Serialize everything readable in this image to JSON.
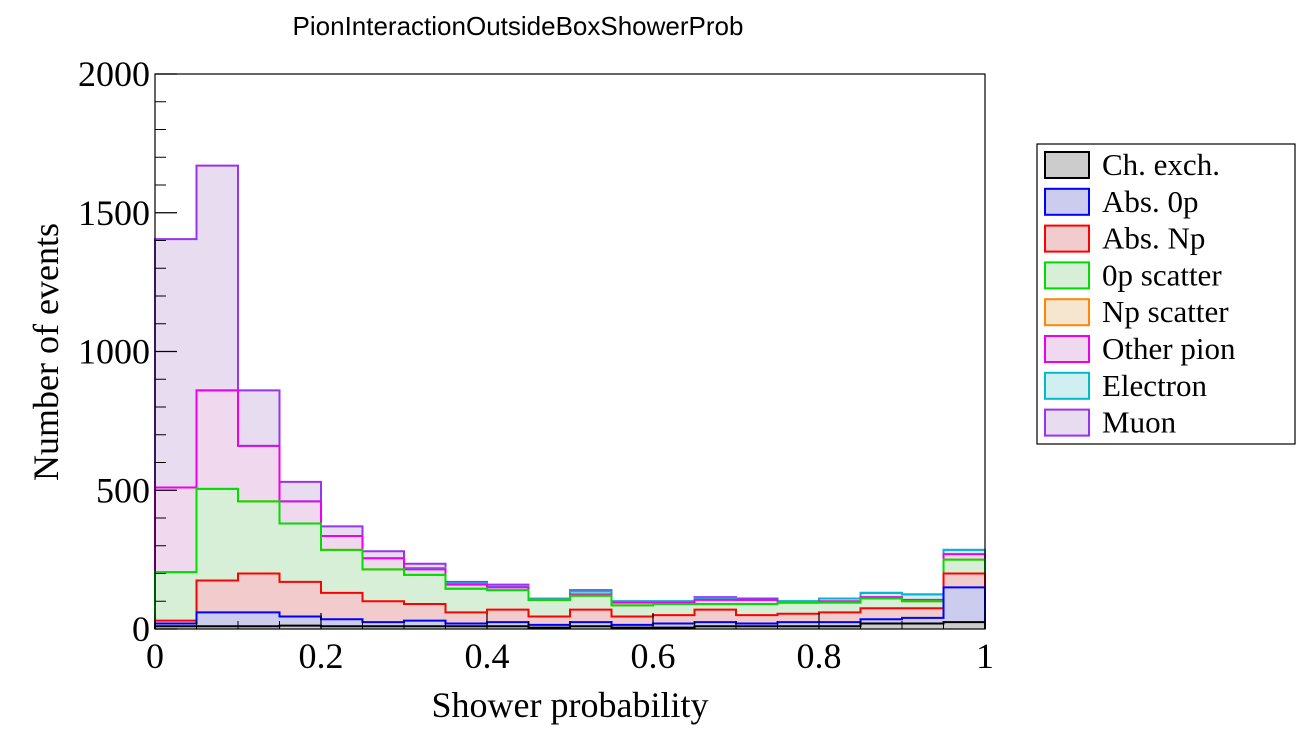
{
  "chart_data": {
    "type": "histogram-stacked",
    "title": "PionInteractionOutsideBoxShowerProb",
    "xlabel": "Shower probability",
    "ylabel": "Number of events",
    "xlim": [
      0,
      1
    ],
    "ylim": [
      0,
      2000
    ],
    "xticks": [
      0,
      0.2,
      0.4,
      0.6,
      0.8,
      1
    ],
    "xtick_labels": [
      "0",
      "0.2",
      "0.4",
      "0.6",
      "0.8",
      "1"
    ],
    "yticks": [
      0,
      500,
      1000,
      1500,
      2000
    ],
    "ytick_labels": [
      "0",
      "500",
      "1000",
      "1500",
      "2000"
    ],
    "bin_edges": [
      0,
      0.05,
      0.1,
      0.15,
      0.2,
      0.25,
      0.3,
      0.35,
      0.4,
      0.45,
      0.5,
      0.55,
      0.6,
      0.65,
      0.7,
      0.75,
      0.8,
      0.85,
      0.9,
      0.95,
      1.0
    ],
    "legend_position": "right",
    "stacked_cumulative_values": [
      {
        "name": "Ch. exch.",
        "color": "#000000",
        "fill": "#cccccc",
        "values": [
          10,
          10,
          10,
          12,
          10,
          10,
          10,
          10,
          10,
          5,
          10,
          5,
          5,
          10,
          10,
          10,
          10,
          20,
          20,
          25
        ]
      },
      {
        "name": "Abs. 0p",
        "color": "#0000ff",
        "fill": "#ccccee",
        "values": [
          20,
          60,
          60,
          45,
          35,
          25,
          30,
          20,
          25,
          15,
          25,
          15,
          20,
          25,
          20,
          25,
          25,
          35,
          40,
          150
        ]
      },
      {
        "name": "Abs. Np",
        "color": "#ff0000",
        "fill": "#f2cccc",
        "values": [
          30,
          175,
          200,
          170,
          130,
          100,
          90,
          60,
          70,
          45,
          70,
          45,
          50,
          70,
          50,
          55,
          60,
          75,
          75,
          200
        ]
      },
      {
        "name": "0p scatter",
        "color": "#00dd00",
        "fill": "#d6efd6",
        "values": [
          205,
          505,
          460,
          380,
          285,
          215,
          195,
          145,
          140,
          105,
          120,
          85,
          90,
          90,
          90,
          95,
          95,
          110,
          100,
          250
        ]
      },
      {
        "name": "Np scatter",
        "color": "#ff8800",
        "fill": "#f6e6d0",
        "values": [
          205,
          505,
          460,
          380,
          285,
          215,
          195,
          145,
          140,
          105,
          120,
          85,
          90,
          90,
          90,
          95,
          95,
          110,
          100,
          250
        ]
      },
      {
        "name": "Other pion",
        "color": "#ee00ee",
        "fill": "#f0d9ee",
        "values": [
          510,
          860,
          660,
          460,
          335,
          255,
          215,
          160,
          150,
          105,
          125,
          95,
          95,
          105,
          105,
          95,
          100,
          115,
          105,
          270
        ]
      },
      {
        "name": "Electron",
        "color": "#00bbcc",
        "fill": "#d0eff0",
        "values": [
          510,
          860,
          660,
          460,
          335,
          255,
          220,
          165,
          155,
          110,
          135,
          100,
          100,
          110,
          105,
          100,
          110,
          130,
          125,
          285
        ]
      },
      {
        "name": "Muon",
        "color": "#9933ee",
        "fill": "#e8dcf0",
        "values": [
          1405,
          1670,
          860,
          530,
          370,
          280,
          235,
          170,
          160,
          110,
          140,
          100,
          100,
          115,
          110,
          100,
          110,
          130,
          125,
          285
        ]
      }
    ]
  }
}
